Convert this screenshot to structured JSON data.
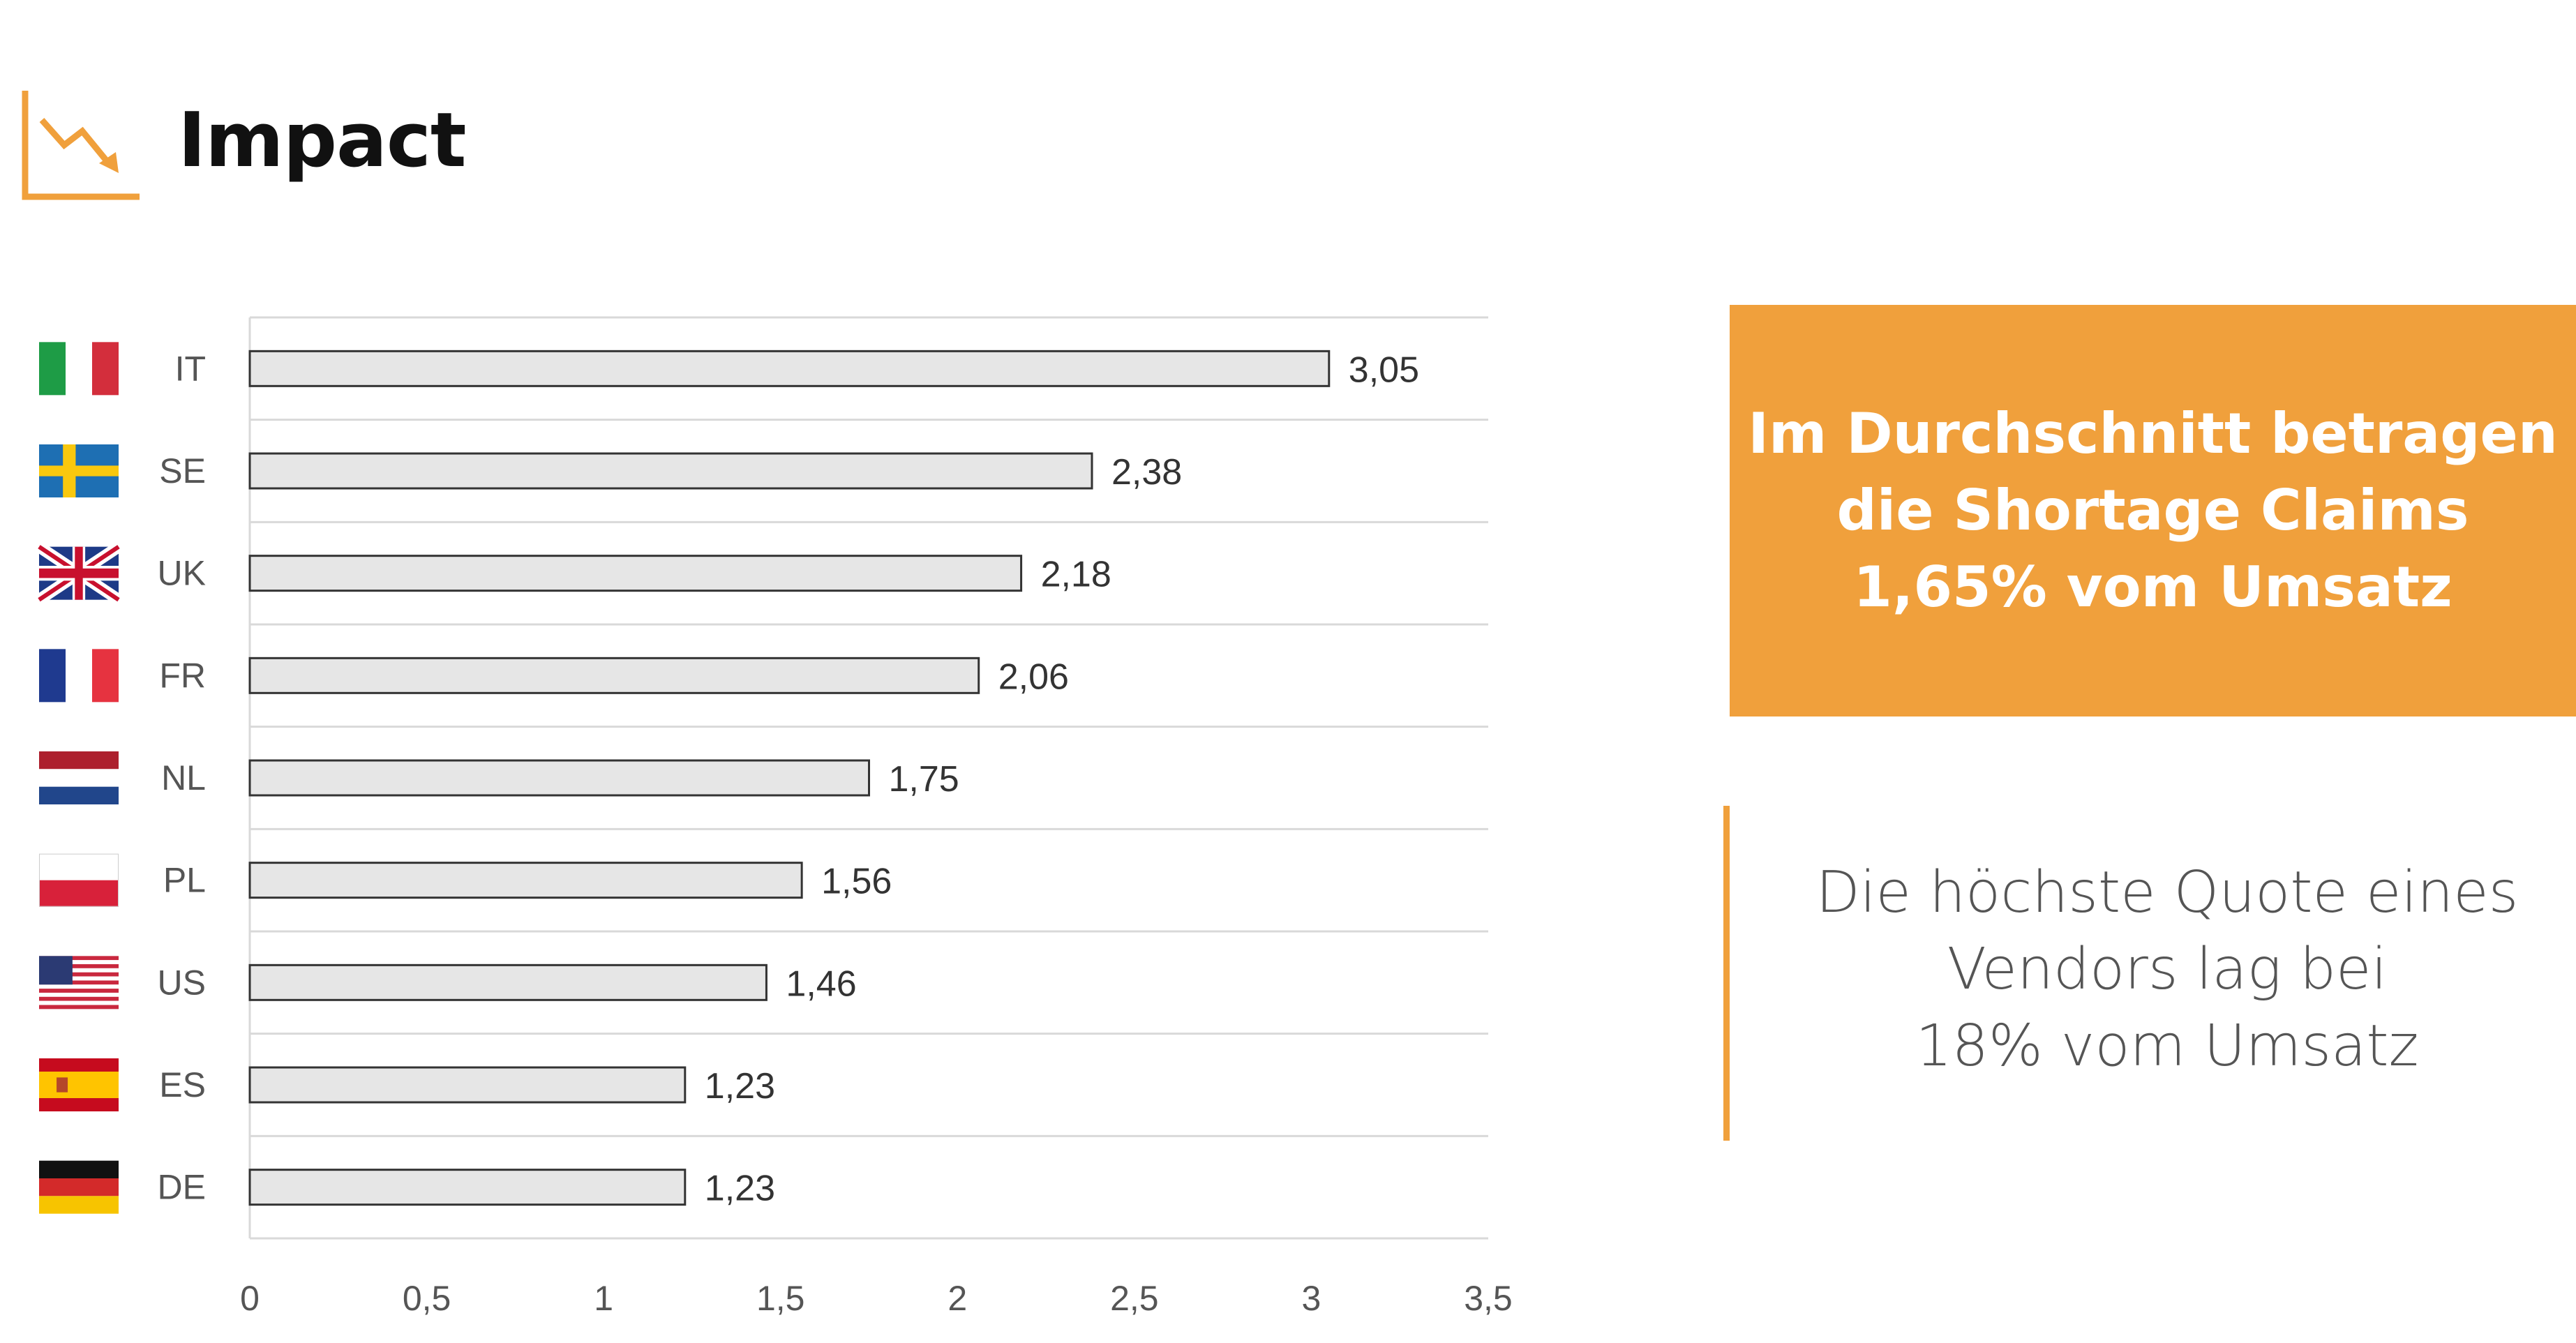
{
  "header": {
    "title": "Impact",
    "icon": "trend-down-icon",
    "accent_color": "#f0a03c"
  },
  "chart_data": {
    "type": "bar",
    "orientation": "horizontal",
    "categories": [
      "IT",
      "SE",
      "UK",
      "FR",
      "NL",
      "PL",
      "US",
      "ES",
      "DE"
    ],
    "flags": [
      "flag-italy-icon",
      "flag-sweden-icon",
      "flag-uk-icon",
      "flag-france-icon",
      "flag-netherlands-icon",
      "flag-poland-icon",
      "flag-usa-icon",
      "flag-spain-icon",
      "flag-germany-icon"
    ],
    "values": [
      3.05,
      2.38,
      2.18,
      2.06,
      1.75,
      1.56,
      1.46,
      1.23,
      1.23
    ],
    "value_labels": [
      "3,05",
      "2,38",
      "2,18",
      "2,06",
      "1,75",
      "1,56",
      "1,46",
      "1,23",
      "1,23"
    ],
    "xlim": [
      0,
      3.5
    ],
    "x_ticks": [
      0,
      0.5,
      1,
      1.5,
      2,
      2.5,
      3,
      3.5
    ],
    "x_tick_labels": [
      "0",
      "0,5",
      "1",
      "1,5",
      "2",
      "2,5",
      "3",
      "3,5"
    ],
    "grid": true,
    "bar_color": "#e6e6e6",
    "bar_edge_color": "#333333"
  },
  "highlight": {
    "text": "Im Durchschnitt betragen\ndie Shortage Claims\n1,65% vom Umsatz",
    "color": "#f0a03c"
  },
  "note": {
    "text": "Die höchste Quote eines\nVendors lag bei\n18% vom Umsatz"
  }
}
